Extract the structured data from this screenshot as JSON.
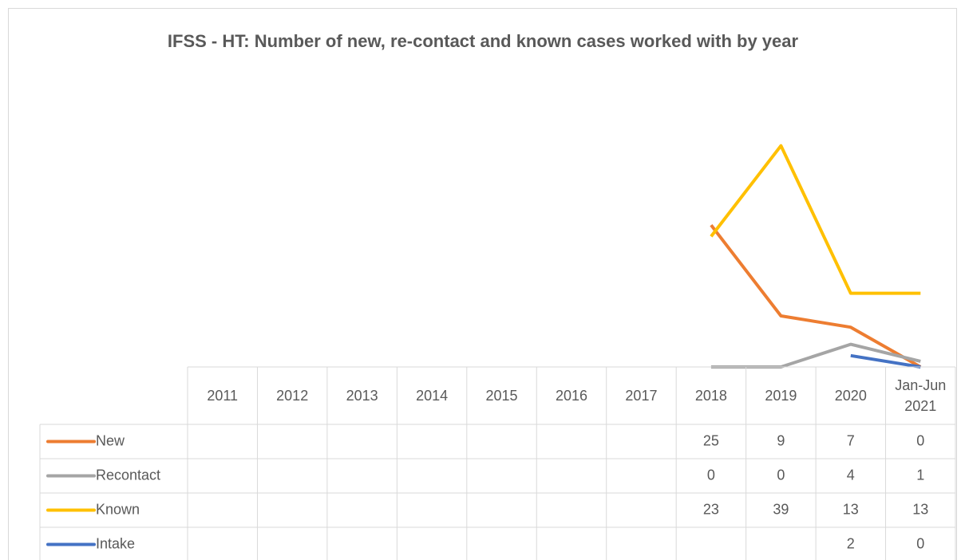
{
  "chart_data": {
    "type": "line",
    "title": "IFSS - HT: Number of new, re-contact and known cases worked with by year",
    "categories": [
      "2011",
      "2012",
      "2013",
      "2014",
      "2015",
      "2016",
      "2017",
      "2018",
      "2019",
      "2020",
      "Jan-Jun 2021"
    ],
    "series": [
      {
        "name": "New",
        "color": "#ed7d31",
        "values": [
          null,
          null,
          null,
          null,
          null,
          null,
          null,
          25,
          9,
          7,
          0
        ]
      },
      {
        "name": "Recontact",
        "color": "#a5a5a5",
        "values": [
          null,
          null,
          null,
          null,
          null,
          null,
          null,
          0,
          0,
          4,
          1
        ]
      },
      {
        "name": "Known",
        "color": "#ffc000",
        "values": [
          null,
          null,
          null,
          null,
          null,
          null,
          null,
          23,
          39,
          13,
          13
        ]
      },
      {
        "name": "Intake",
        "color": "#4472c4",
        "values": [
          null,
          null,
          null,
          null,
          null,
          null,
          null,
          null,
          null,
          2,
          0
        ]
      }
    ],
    "ylim": [
      0,
      45
    ]
  }
}
